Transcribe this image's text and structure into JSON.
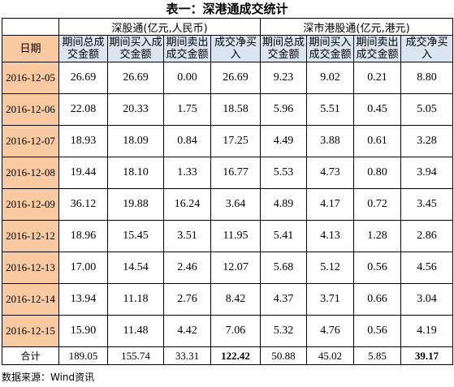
{
  "title": "表一：深港通成交统计",
  "groups": {
    "shenzhen_connect": "深股通(亿元,人民币)",
    "hk_connect": "深市港股通(亿元,港元)"
  },
  "columns": {
    "date": "日期",
    "sz_total": "期间总成交金额",
    "sz_buy": "期间买入成交金额",
    "sz_sell": "期间卖出成交金额",
    "sz_net": "成交净买入",
    "hk_total": "期间总成交金额",
    "hk_buy": "期间买入成交金额",
    "hk_sell": "期间卖出成交金额",
    "hk_net": "成交净买入"
  },
  "rows": [
    {
      "date": "2016-12-05",
      "v": [
        "26.69",
        "26.69",
        "0.00",
        "26.69",
        "9.23",
        "9.02",
        "0.21",
        "8.80"
      ]
    },
    {
      "date": "2016-12-06",
      "v": [
        "22.08",
        "20.33",
        "1.75",
        "18.58",
        "5.96",
        "5.51",
        "0.45",
        "5.05"
      ]
    },
    {
      "date": "2016-12-07",
      "v": [
        "18.93",
        "18.09",
        "0.84",
        "17.25",
        "4.49",
        "3.88",
        "0.61",
        "3.28"
      ]
    },
    {
      "date": "2016-12-08",
      "v": [
        "19.44",
        "18.10",
        "1.33",
        "16.77",
        "5.53",
        "4.73",
        "0.80",
        "3.94"
      ]
    },
    {
      "date": "2016-12-09",
      "v": [
        "36.12",
        "19.88",
        "16.24",
        "3.64",
        "4.89",
        "4.17",
        "0.72",
        "3.45"
      ]
    },
    {
      "date": "2016-12-12",
      "v": [
        "18.96",
        "15.45",
        "3.51",
        "11.95",
        "5.41",
        "4.13",
        "1.28",
        "2.86"
      ]
    },
    {
      "date": "2016-12-13",
      "v": [
        "17.00",
        "14.54",
        "2.46",
        "12.07",
        "5.68",
        "5.12",
        "0.56",
        "4.56"
      ]
    },
    {
      "date": "2016-12-14",
      "v": [
        "13.94",
        "11.18",
        "2.76",
        "8.42",
        "4.37",
        "3.71",
        "0.66",
        "3.04"
      ]
    },
    {
      "date": "2016-12-15",
      "v": [
        "15.90",
        "11.48",
        "4.42",
        "7.06",
        "5.32",
        "4.76",
        "0.56",
        "4.19"
      ]
    }
  ],
  "total": {
    "label": "合计",
    "v": [
      "189.05",
      "155.74",
      "33.31",
      "122.42",
      "50.88",
      "45.02",
      "5.85",
      "39.17"
    ]
  },
  "source": "数据来源：Wind资讯",
  "colors": {
    "date_highlight": "#f9c9a2",
    "header_fill": "#dbe5f1"
  }
}
